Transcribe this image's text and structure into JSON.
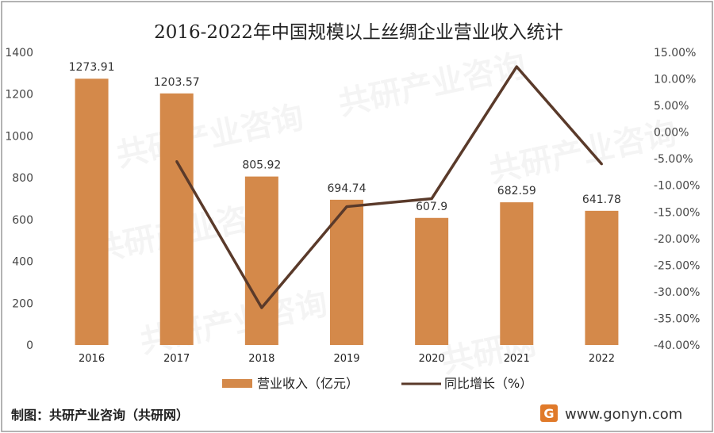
{
  "chart_data": {
    "type": "bar",
    "title": "2016-2022年中国规模以上丝绸企业营业收入统计",
    "categories": [
      "2016",
      "2017",
      "2018",
      "2019",
      "2020",
      "2021",
      "2022"
    ],
    "series": [
      {
        "name": "营业收入（亿元）",
        "type": "bar",
        "axis": "left",
        "color": "#d4894a",
        "values": [
          1273.91,
          1203.57,
          805.92,
          694.74,
          607.9,
          682.59,
          641.78
        ],
        "labels": [
          "1273.91",
          "1203.57",
          "805.92",
          "694.74",
          "607.9",
          "682.59",
          "641.78"
        ]
      },
      {
        "name": "同比增长（%）",
        "type": "line",
        "axis": "right",
        "color": "#5a3a2a",
        "values": [
          null,
          -5.5,
          -33.0,
          -14.0,
          -12.5,
          12.3,
          -6.0
        ]
      }
    ],
    "y_left": {
      "ylim": [
        0,
        1400
      ],
      "ticks": [
        "0",
        "200",
        "400",
        "600",
        "800",
        "1000",
        "1200",
        "1400"
      ]
    },
    "y_right": {
      "ylim": [
        -40,
        15
      ],
      "ticks": [
        "-40.00%",
        "-35.00%",
        "-30.00%",
        "-25.00%",
        "-20.00%",
        "-15.00%",
        "-10.00%",
        "-5.00%",
        "0.00%",
        "5.00%",
        "10.00%",
        "15.00%"
      ]
    },
    "legend_position": "bottom",
    "grid": false
  },
  "footer": {
    "source": "制图：共研产业咨询（共研网）",
    "website": "www.gonyn.com",
    "logo_color": "#e07a2a"
  },
  "watermark": [
    "共研产业咨询",
    "共研网"
  ]
}
